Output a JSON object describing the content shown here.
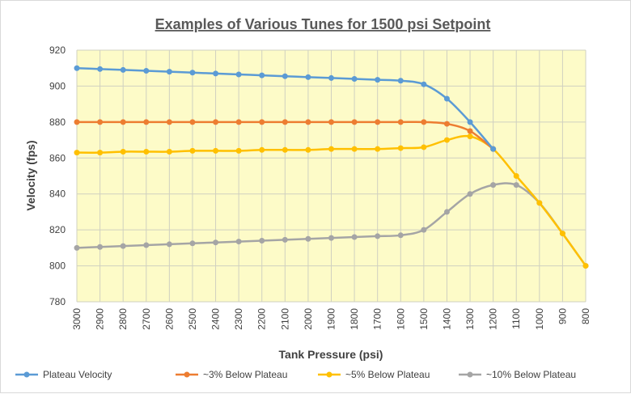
{
  "chart_data": {
    "type": "line",
    "title": "Examples of Various Tunes for 1500 psi Setpoint",
    "xlabel": "Tank Pressure (psi)",
    "ylabel": "Velocity (fps)",
    "categories": [
      "3000",
      "2900",
      "2800",
      "2700",
      "2600",
      "2500",
      "2400",
      "2300",
      "2200",
      "2100",
      "2000",
      "1900",
      "1800",
      "1700",
      "1600",
      "1500",
      "1400",
      "1300",
      "1200",
      "1100",
      "1000",
      "900",
      "800"
    ],
    "ylim": [
      780,
      920
    ],
    "yticks": [
      780,
      800,
      820,
      840,
      860,
      880,
      900,
      920
    ],
    "grid": true,
    "plot_background": "#fdfbc8",
    "legend_position": "bottom",
    "series": [
      {
        "name": "Plateau Velocity",
        "color": "#5b9bd5",
        "values": [
          910,
          909.5,
          909,
          908.5,
          908,
          907.5,
          907,
          906.5,
          906,
          905.5,
          905,
          904.5,
          904,
          903.5,
          903,
          901,
          893,
          880,
          865,
          null,
          null,
          null,
          null
        ]
      },
      {
        "name": "~3% Below Plateau",
        "color": "#ed7d31",
        "values": [
          880,
          880,
          880,
          880,
          880,
          880,
          880,
          880,
          880,
          880,
          880,
          880,
          880,
          880,
          880,
          880,
          879,
          875,
          865,
          null,
          null,
          null,
          null
        ]
      },
      {
        "name": "~5% Below Plateau",
        "color": "#ffc000",
        "values": [
          863,
          863,
          863.5,
          863.5,
          863.5,
          864,
          864,
          864,
          864.5,
          864.5,
          864.5,
          865,
          865,
          865,
          865.5,
          866,
          870,
          872,
          865,
          850,
          835,
          818,
          800
        ]
      },
      {
        "name": "~10% Below Plateau",
        "color": "#a5a5a5",
        "values": [
          810,
          810.5,
          811,
          811.5,
          812,
          812.5,
          813,
          813.5,
          814,
          814.5,
          815,
          815.5,
          816,
          816.5,
          817,
          820,
          830,
          840,
          845,
          845,
          835,
          818,
          800
        ]
      }
    ]
  }
}
